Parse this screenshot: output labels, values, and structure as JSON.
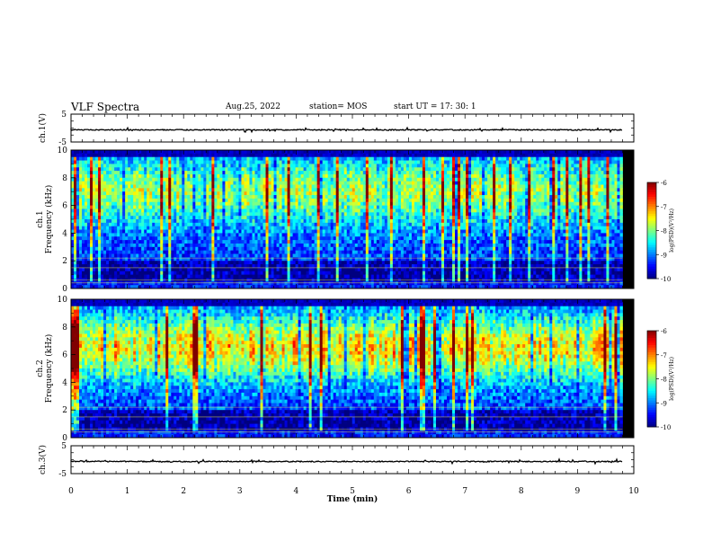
{
  "header": {
    "title": "VLF Spectra",
    "date": "Aug.25, 2022",
    "station": "station= MOS",
    "start_ut": "start  UT =   17: 30: 1"
  },
  "colors": {
    "trace": "#000000",
    "axis": "#000000",
    "background": "#ffffff"
  },
  "chart_data": [
    {
      "type": "line",
      "name": "ch1-waveform",
      "ylabel": "ch.1(V)",
      "ylim": [
        -5,
        5
      ],
      "y_ticks": [
        "5",
        "-5"
      ],
      "xlim": [
        0,
        10
      ],
      "baseline": 0
    },
    {
      "type": "heatmap",
      "name": "ch1-spectrogram",
      "ylabel": "ch.1\nFrequency (kHz)",
      "ylabel_lines": [
        "ch.1",
        "Frequency (kHz)"
      ],
      "ylim": [
        0,
        10
      ],
      "y_ticks": [
        "0",
        "2",
        "4",
        "6",
        "8",
        "10"
      ],
      "xlim": [
        0,
        9.8
      ],
      "colorbar": {
        "label": "log(PSD)(V²/Hz)",
        "range": [
          -10,
          -6
        ],
        "ticks": [
          "-6",
          "-7",
          "-8",
          "-9",
          "-10"
        ]
      },
      "features": {
        "intensity_band_khz": [
          1.5,
          9.5
        ],
        "peak_level": -8.5,
        "noise_floor": -10
      }
    },
    {
      "type": "heatmap",
      "name": "ch2-spectrogram",
      "ylabel": "ch.2\nFrequency (kHz)",
      "ylabel_lines": [
        "ch.2",
        "Frequency (kHz)"
      ],
      "ylim": [
        0,
        10
      ],
      "y_ticks": [
        "0",
        "2",
        "4",
        "6",
        "8",
        "10"
      ],
      "xlim": [
        0,
        9.8
      ],
      "colorbar": {
        "label": "log(PSD)(V²/Hz)",
        "range": [
          -10,
          -6
        ],
        "ticks": [
          "-6",
          "-7",
          "-8",
          "-9",
          "-10"
        ]
      },
      "features": {
        "intensity_band_khz": [
          2.5,
          9.5
        ],
        "peak_frequency_khz": 6.5,
        "peak_level": -7,
        "noise_floor": -10
      }
    },
    {
      "type": "line",
      "name": "ch3-waveform",
      "ylabel": "ch.3(V)",
      "ylim": [
        -5,
        5
      ],
      "y_ticks": [
        "5",
        "-5"
      ],
      "xlim": [
        0,
        10
      ],
      "baseline": 0
    }
  ],
  "xaxis": {
    "label": "Time  (min)",
    "range": [
      0,
      10
    ],
    "ticks": [
      "0",
      "1",
      "2",
      "3",
      "4",
      "5",
      "6",
      "7",
      "8",
      "9",
      "10"
    ]
  }
}
